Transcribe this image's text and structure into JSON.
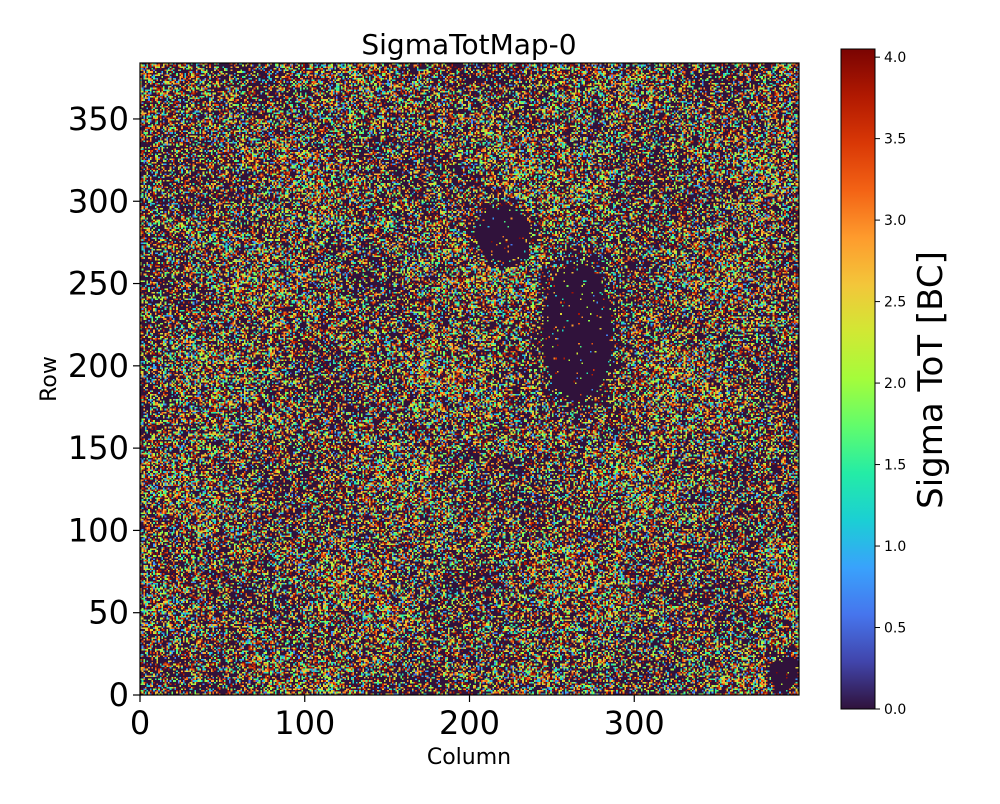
{
  "chart_data": {
    "type": "heatmap",
    "title": "SigmaTotMap-0",
    "xlabel": "Column",
    "ylabel": "Row",
    "xlim": [
      0,
      400
    ],
    "ylim": [
      0,
      384
    ],
    "x_ticks": [
      0,
      100,
      200,
      300
    ],
    "y_ticks": [
      0,
      50,
      100,
      150,
      200,
      250,
      300,
      350
    ],
    "grid": false,
    "colormap": "turbo",
    "colorbar": {
      "label": "Sigma ToT [BC]",
      "range": [
        0.0,
        4.05
      ],
      "ticks": [
        "0.0",
        "0.5",
        "1.0",
        "1.5",
        "2.0",
        "2.5",
        "3.0",
        "3.5",
        "4.0"
      ],
      "stops": [
        "#30123b",
        "#4145ab",
        "#4675ed",
        "#39a2fc",
        "#1bcfd4",
        "#24eca6",
        "#61fc6c",
        "#a4fc3b",
        "#d1e834",
        "#f3c63a",
        "#fe9b2d",
        "#f36315",
        "#d93806",
        "#b11901",
        "#7a0402"
      ]
    },
    "description_values": {
      "background_level": 0.0,
      "typical_nonzero_range": [
        0.5,
        4.0
      ],
      "empty_regions": [
        {
          "col_range": [
            240,
            290
          ],
          "row_range": [
            170,
            270
          ],
          "value": 0.0
        },
        {
          "col_range": [
            200,
            240
          ],
          "row_range": [
            260,
            300
          ],
          "value": 0.0
        },
        {
          "col_range": [
            380,
            400
          ],
          "row_range": [
            0,
            25
          ],
          "value": 0.0
        }
      ]
    }
  }
}
